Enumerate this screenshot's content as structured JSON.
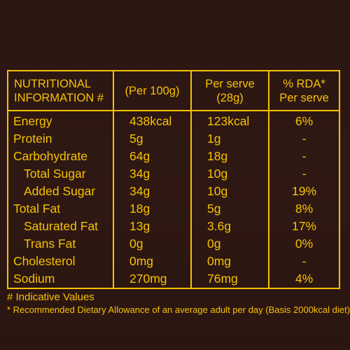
{
  "table": {
    "headers": {
      "col1_line1": "NUTRITIONAL",
      "col1_line2": "INFORMATION #",
      "col2": "(Per 100g)",
      "col3_line1": "Per serve",
      "col3_line2": "(28g)",
      "col4_line1": "% RDA*",
      "col4_line2": "Per serve"
    },
    "rows": [
      {
        "name": "Energy",
        "per100": "438kcal",
        "serve": "123kcal",
        "rda": "6%"
      },
      {
        "name": "Protein",
        "per100": "5g",
        "serve": "1g",
        "rda": "-"
      },
      {
        "name": "Carbohydrate",
        "per100": "64g",
        "serve": "18g",
        "rda": "-"
      },
      {
        "name": "Total Sugar",
        "per100": "34g",
        "serve": "10g",
        "rda": "-"
      },
      {
        "name": "Added Sugar",
        "per100": "34g",
        "serve": "10g",
        "rda": "19%"
      },
      {
        "name": "Total Fat",
        "per100": "18g",
        "serve": "5g",
        "rda": "8%"
      },
      {
        "name": "Saturated Fat",
        "per100": "13g",
        "serve": "3.6g",
        "rda": "17%"
      },
      {
        "name": "Trans Fat",
        "per100": "0g",
        "serve": "0g",
        "rda": "0%"
      },
      {
        "name": "Cholesterol",
        "per100": "0mg",
        "serve": "0mg",
        "rda": "-"
      },
      {
        "name": "Sodium",
        "per100": "270mg",
        "serve": "76mg",
        "rda": "4%"
      }
    ]
  },
  "footnotes": {
    "indicative": "# Indicative Values",
    "rda_note": "* Recommended Dietary Allowance of an average adult per day (Basis 2000kcal diet)"
  },
  "colors": {
    "background": "#2d1713",
    "text": "#f6c200"
  }
}
